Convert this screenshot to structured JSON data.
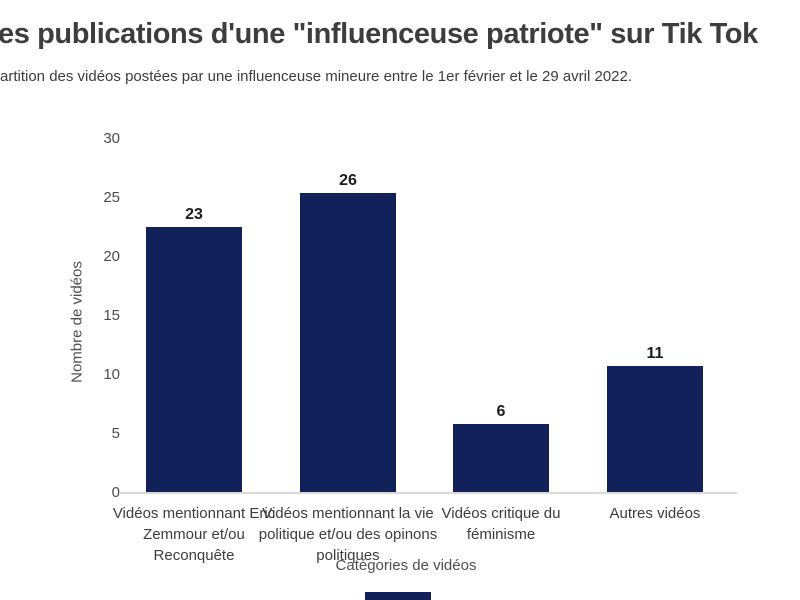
{
  "header": {
    "title": "es publications d'une \"influenceuse patriote\" sur Tik Tok",
    "subtitle": "artition des vidéos postées par une influenceuse mineure entre le 1er février et le 29 avril 2022."
  },
  "chart_data": {
    "type": "bar",
    "title": "es publications d'une \"influenceuse patriote\" sur Tik Tok",
    "subtitle": "artition des vidéos postées par une influenceuse mineure entre le 1er février et le 29 avril 2022.",
    "categories": [
      "Vidéos mentionnant Eric Zemmour et/ou Reconquête",
      "Vidéos mentionnant la vie politique et/ou des opinons politiques",
      "Vidéos critique du féminisme",
      "Autres vidéos"
    ],
    "values": [
      23,
      26,
      6,
      11
    ],
    "value_labels": [
      "23",
      "26",
      "6",
      "11"
    ],
    "xlabel": "Catégories de vidéos",
    "ylabel": "Nombre de vidéos",
    "ylim": [
      0,
      30
    ],
    "yticks": [
      0,
      5,
      10,
      15,
      20,
      25,
      30
    ],
    "grid": false,
    "legend": "none",
    "bar_color": "#13215a"
  },
  "colors": {
    "background": "#ffffff",
    "bar": "#13215a",
    "title_text": "#3d3d3d",
    "axis_text": "#4f4f4f",
    "value_label_text": "#1c1c1c",
    "baseline": "#d9d9d9",
    "footer_mark": "#13215a"
  },
  "footer": {
    "mark": "brand-mark"
  }
}
